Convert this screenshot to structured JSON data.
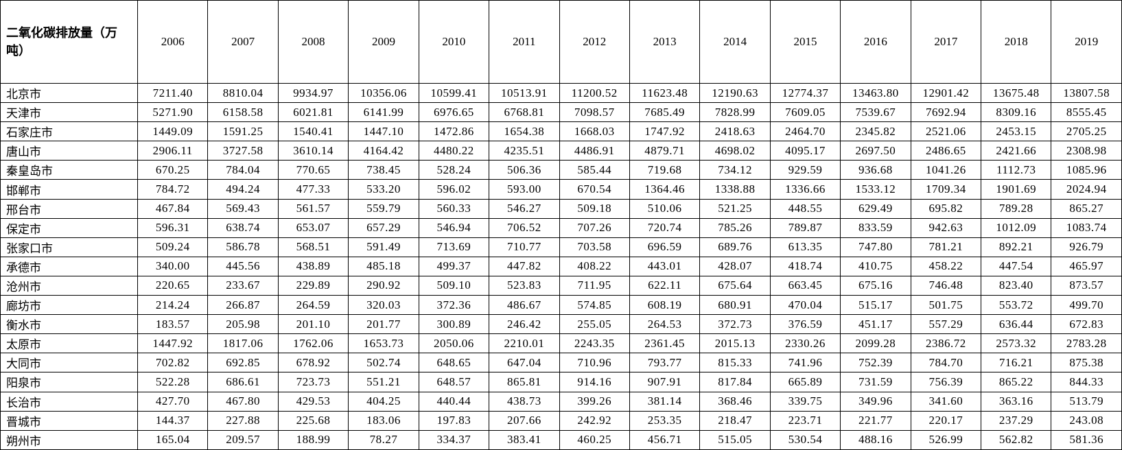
{
  "table": {
    "corner_header": "二氧化碳排放量（万吨）",
    "unit_note": "万吨",
    "years": [
      "2006",
      "2007",
      "2008",
      "2009",
      "2010",
      "2011",
      "2012",
      "2013",
      "2014",
      "2015",
      "2016",
      "2017",
      "2018",
      "2019"
    ],
    "rows": [
      {
        "city": "北京市",
        "values": [
          "7211.40",
          "8810.04",
          "9934.97",
          "10356.06",
          "10599.41",
          "10513.91",
          "11200.52",
          "11623.48",
          "12190.63",
          "12774.37",
          "13463.80",
          "12901.42",
          "13675.48",
          "13807.58"
        ]
      },
      {
        "city": "天津市",
        "values": [
          "5271.90",
          "6158.58",
          "6021.81",
          "6141.99",
          "6976.65",
          "6768.81",
          "7098.57",
          "7685.49",
          "7828.99",
          "7609.05",
          "7539.67",
          "7692.94",
          "8309.16",
          "8555.45"
        ]
      },
      {
        "city": "石家庄市",
        "values": [
          "1449.09",
          "1591.25",
          "1540.41",
          "1447.10",
          "1472.86",
          "1654.38",
          "1668.03",
          "1747.92",
          "2418.63",
          "2464.70",
          "2345.82",
          "2521.06",
          "2453.15",
          "2705.25"
        ]
      },
      {
        "city": "唐山市",
        "values": [
          "2906.11",
          "3727.58",
          "3610.14",
          "4164.42",
          "4480.22",
          "4235.51",
          "4486.91",
          "4879.71",
          "4698.02",
          "4095.17",
          "2697.50",
          "2486.65",
          "2421.66",
          "2308.98"
        ]
      },
      {
        "city": "秦皇岛市",
        "values": [
          "670.25",
          "784.04",
          "770.65",
          "738.45",
          "528.24",
          "506.36",
          "585.44",
          "719.68",
          "734.12",
          "929.59",
          "936.68",
          "1041.26",
          "1112.73",
          "1085.96"
        ]
      },
      {
        "city": "邯郸市",
        "values": [
          "784.72",
          "494.24",
          "477.33",
          "533.20",
          "596.02",
          "593.00",
          "670.54",
          "1364.46",
          "1338.88",
          "1336.66",
          "1533.12",
          "1709.34",
          "1901.69",
          "2024.94"
        ]
      },
      {
        "city": "邢台市",
        "values": [
          "467.84",
          "569.43",
          "561.57",
          "559.79",
          "560.33",
          "546.27",
          "509.18",
          "510.06",
          "521.25",
          "448.55",
          "629.49",
          "695.82",
          "789.28",
          "865.27"
        ]
      },
      {
        "city": "保定市",
        "values": [
          "596.31",
          "638.74",
          "653.07",
          "657.29",
          "546.94",
          "706.52",
          "707.26",
          "720.74",
          "785.26",
          "789.87",
          "833.59",
          "942.63",
          "1012.09",
          "1083.74"
        ]
      },
      {
        "city": "张家口市",
        "values": [
          "509.24",
          "586.78",
          "568.51",
          "591.49",
          "713.69",
          "710.77",
          "703.58",
          "696.59",
          "689.76",
          "613.35",
          "747.80",
          "781.21",
          "892.21",
          "926.79"
        ]
      },
      {
        "city": "承德市",
        "values": [
          "340.00",
          "445.56",
          "438.89",
          "485.18",
          "499.37",
          "447.82",
          "408.22",
          "443.01",
          "428.07",
          "418.74",
          "410.75",
          "458.22",
          "447.54",
          "465.97"
        ]
      },
      {
        "city": "沧州市",
        "values": [
          "220.65",
          "233.67",
          "229.89",
          "290.92",
          "509.10",
          "523.83",
          "711.95",
          "622.11",
          "675.64",
          "663.45",
          "675.16",
          "746.48",
          "823.40",
          "873.57"
        ]
      },
      {
        "city": "廊坊市",
        "values": [
          "214.24",
          "266.87",
          "264.59",
          "320.03",
          "372.36",
          "486.67",
          "574.85",
          "608.19",
          "680.91",
          "470.04",
          "515.17",
          "501.75",
          "553.72",
          "499.70"
        ]
      },
      {
        "city": "衡水市",
        "values": [
          "183.57",
          "205.98",
          "201.10",
          "201.77",
          "300.89",
          "246.42",
          "255.05",
          "264.53",
          "372.73",
          "376.59",
          "451.17",
          "557.29",
          "636.44",
          "672.83"
        ]
      },
      {
        "city": "太原市",
        "values": [
          "1447.92",
          "1817.06",
          "1762.06",
          "1653.73",
          "2050.06",
          "2210.01",
          "2243.35",
          "2361.45",
          "2015.13",
          "2330.26",
          "2099.28",
          "2386.72",
          "2573.32",
          "2783.28"
        ]
      },
      {
        "city": "大同市",
        "values": [
          "702.82",
          "692.85",
          "678.92",
          "502.74",
          "648.65",
          "647.04",
          "710.96",
          "793.77",
          "815.33",
          "741.96",
          "752.39",
          "784.70",
          "716.21",
          "875.38"
        ]
      },
      {
        "city": "阳泉市",
        "values": [
          "522.28",
          "686.61",
          "723.73",
          "551.21",
          "648.57",
          "865.81",
          "914.16",
          "907.91",
          "817.84",
          "665.89",
          "731.59",
          "756.39",
          "865.22",
          "844.33"
        ]
      },
      {
        "city": "长治市",
        "values": [
          "427.70",
          "467.80",
          "429.53",
          "404.25",
          "440.44",
          "438.73",
          "399.26",
          "381.14",
          "368.46",
          "339.75",
          "349.96",
          "341.60",
          "363.16",
          "513.79"
        ]
      },
      {
        "city": "晋城市",
        "values": [
          "144.37",
          "227.88",
          "225.68",
          "183.06",
          "197.83",
          "207.66",
          "242.92",
          "253.35",
          "218.47",
          "223.71",
          "221.77",
          "220.17",
          "237.29",
          "243.08"
        ]
      },
      {
        "city": "朔州市",
        "values": [
          "165.04",
          "209.57",
          "188.99",
          "78.27",
          "334.37",
          "383.41",
          "460.25",
          "456.71",
          "515.05",
          "530.54",
          "488.16",
          "526.99",
          "562.82",
          "581.36"
        ]
      }
    ]
  }
}
